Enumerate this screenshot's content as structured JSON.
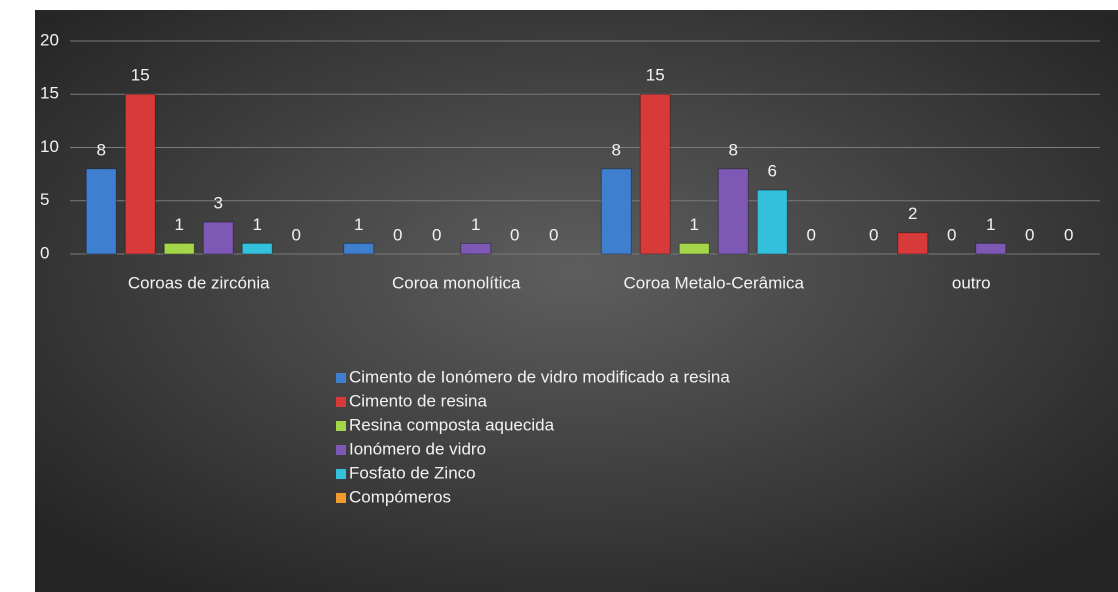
{
  "chart_data": {
    "type": "bar",
    "categories": [
      "Coroas de zircónia",
      "Coroa monolítica",
      "Coroa Metalo-Cerâmica",
      "outro"
    ],
    "series": [
      {
        "name": "Cimento de Ionómero de vidro modificado a resina",
        "color": "#3f7fd0",
        "values": [
          8,
          1,
          8,
          0
        ]
      },
      {
        "name": "Cimento de resina",
        "color": "#d83a3a",
        "values": [
          15,
          0,
          15,
          2
        ]
      },
      {
        "name": "Resina composta aquecida",
        "color": "#a5d64a",
        "values": [
          1,
          0,
          1,
          0
        ]
      },
      {
        "name": "Ionómero de vidro",
        "color": "#7d58b5",
        "values": [
          3,
          1,
          8,
          1
        ]
      },
      {
        "name": "Fosfato de Zinco",
        "color": "#33c0dd",
        "values": [
          1,
          0,
          6,
          0
        ]
      },
      {
        "name": "Compómeros",
        "color": "#f29a2e",
        "values": [
          0,
          0,
          0,
          0
        ]
      }
    ],
    "ylim": [
      0,
      20
    ],
    "yticks": [
      0,
      5,
      10,
      15,
      20
    ],
    "grid": true,
    "data_labels": true,
    "legend": "bottom"
  }
}
